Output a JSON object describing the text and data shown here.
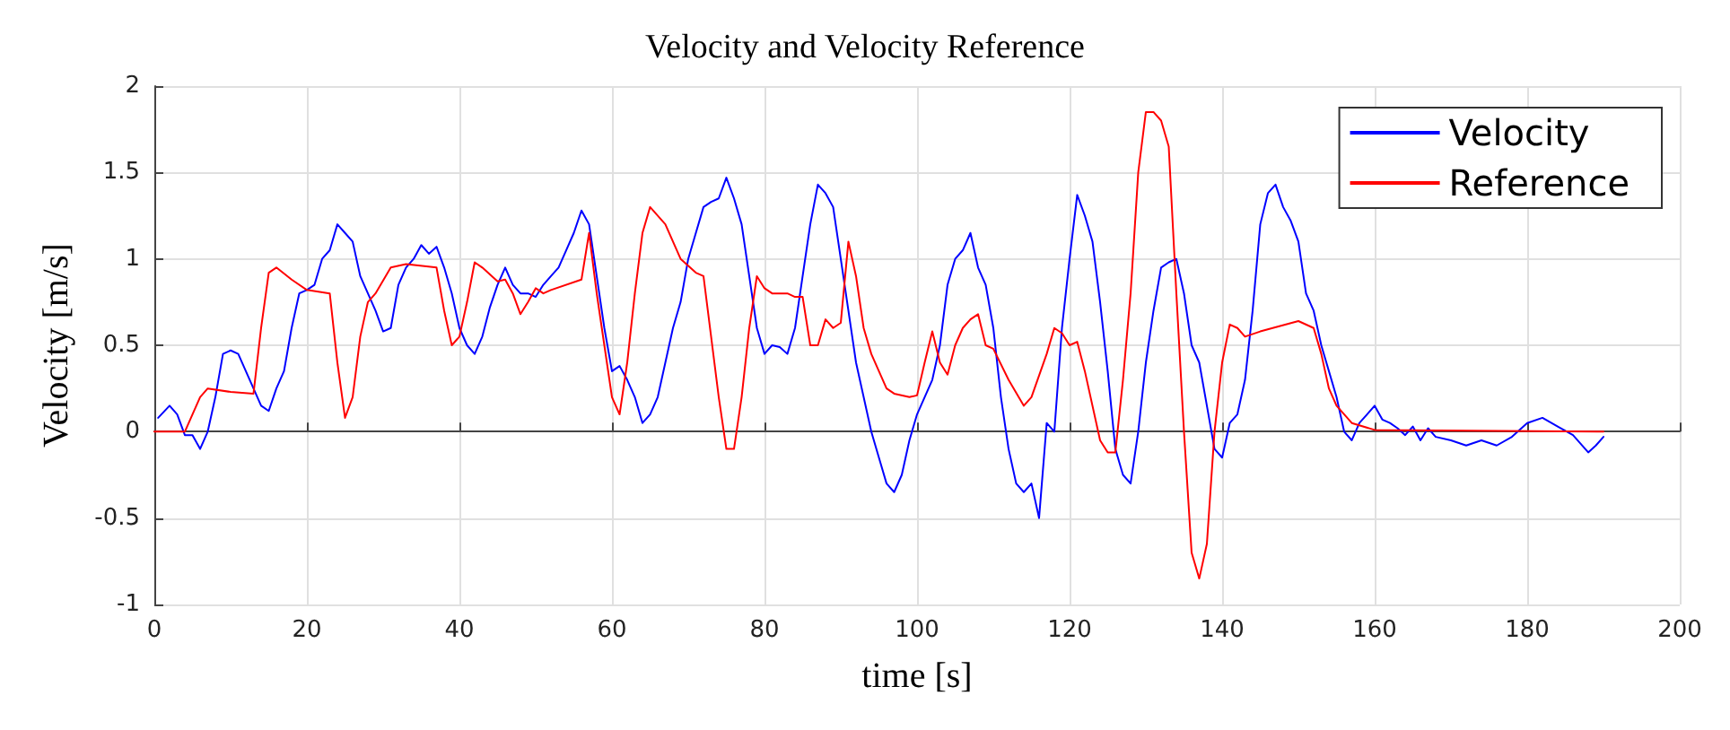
{
  "chart_data": {
    "type": "line",
    "title": "Velocity and Velocity Reference",
    "xlabel": "time [s]",
    "ylabel": "Velocity [m/s]",
    "xlim": [
      0,
      200
    ],
    "xticks": [
      0,
      20,
      40,
      60,
      80,
      100,
      120,
      140,
      160,
      180,
      200
    ],
    "ylim": [
      -1,
      2
    ],
    "yticks": [
      -1,
      -0.5,
      0,
      0.5,
      1,
      1.5,
      2
    ],
    "grid": true,
    "legend": "top right",
    "series": [
      {
        "name": "Velocity",
        "color": "#0000ff",
        "x": [
          0.5,
          2,
          3,
          4,
          5,
          6,
          7,
          8,
          9,
          10,
          11,
          12,
          13,
          14,
          15,
          16,
          17,
          18,
          19,
          20,
          21,
          22,
          23,
          24,
          25,
          26,
          27,
          28,
          29,
          30,
          31,
          32,
          33,
          34,
          35,
          36,
          37,
          38,
          39,
          40,
          41,
          42,
          43,
          44,
          45,
          46,
          47,
          48,
          49,
          50,
          51,
          52,
          53,
          54,
          55,
          56,
          57,
          58,
          59,
          60,
          61,
          62,
          63,
          64,
          65,
          66,
          67,
          68,
          69,
          70,
          71,
          72,
          73,
          74,
          75,
          76,
          77,
          78,
          79,
          80,
          81,
          82,
          83,
          84,
          85,
          86,
          87,
          88,
          89,
          90,
          91,
          92,
          93,
          94,
          95,
          96,
          97,
          98,
          99,
          100,
          101,
          102,
          103,
          104,
          105,
          106,
          107,
          108,
          109,
          110,
          111,
          112,
          113,
          114,
          115,
          116,
          117,
          118,
          119,
          120,
          121,
          122,
          123,
          124,
          125,
          126,
          127,
          128,
          129,
          130,
          131,
          132,
          133,
          134,
          135,
          136,
          137,
          138,
          139,
          140,
          141,
          142,
          143,
          144,
          145,
          146,
          147,
          148,
          149,
          150,
          151,
          152,
          153,
          154,
          155,
          156,
          157,
          158,
          159,
          160,
          161,
          162,
          163,
          164,
          165,
          166,
          167,
          168,
          170,
          172,
          174,
          176,
          178,
          180,
          182,
          184,
          186,
          188,
          189,
          190
        ],
        "values": [
          0.08,
          0.15,
          0.1,
          -0.02,
          -0.02,
          -0.1,
          0.0,
          0.2,
          0.45,
          0.47,
          0.45,
          0.35,
          0.25,
          0.15,
          0.12,
          0.25,
          0.35,
          0.6,
          0.8,
          0.82,
          0.85,
          1.0,
          1.05,
          1.2,
          1.15,
          1.1,
          0.9,
          0.8,
          0.7,
          0.58,
          0.6,
          0.85,
          0.95,
          1.0,
          1.08,
          1.03,
          1.07,
          0.95,
          0.8,
          0.6,
          0.5,
          0.45,
          0.55,
          0.72,
          0.85,
          0.95,
          0.85,
          0.8,
          0.8,
          0.78,
          0.85,
          0.9,
          0.95,
          1.05,
          1.15,
          1.28,
          1.2,
          0.9,
          0.6,
          0.35,
          0.38,
          0.3,
          0.2,
          0.05,
          0.1,
          0.2,
          0.4,
          0.6,
          0.75,
          1.0,
          1.15,
          1.3,
          1.33,
          1.35,
          1.47,
          1.35,
          1.2,
          0.9,
          0.6,
          0.45,
          0.5,
          0.49,
          0.45,
          0.6,
          0.9,
          1.2,
          1.43,
          1.38,
          1.3,
          1.0,
          0.7,
          0.4,
          0.2,
          0.0,
          -0.15,
          -0.3,
          -0.35,
          -0.25,
          -0.05,
          0.1,
          0.2,
          0.3,
          0.5,
          0.85,
          1.0,
          1.05,
          1.15,
          0.95,
          0.85,
          0.6,
          0.2,
          -0.1,
          -0.3,
          -0.35,
          -0.3,
          -0.5,
          0.05,
          0.0,
          0.6,
          1.0,
          1.37,
          1.25,
          1.1,
          0.75,
          0.35,
          -0.1,
          -0.25,
          -0.3,
          0.0,
          0.4,
          0.7,
          0.95,
          0.98,
          1.0,
          0.8,
          0.5,
          0.4,
          0.15,
          -0.1,
          -0.15,
          0.05,
          0.1,
          0.3,
          0.7,
          1.2,
          1.38,
          1.43,
          1.3,
          1.22,
          1.1,
          0.8,
          0.7,
          0.5,
          0.35,
          0.2,
          0.0,
          -0.05,
          0.05,
          0.1,
          0.15,
          0.07,
          0.05,
          0.02,
          -0.02,
          0.03,
          -0.05,
          0.02,
          -0.03,
          -0.05,
          -0.08,
          -0.05,
          -0.08,
          -0.03,
          0.05,
          0.08,
          0.03,
          -0.02,
          -0.12,
          -0.08,
          -0.03
        ]
      },
      {
        "name": "Reference",
        "color": "#ff0000",
        "x": [
          0,
          4,
          5,
          6,
          7,
          10,
          13,
          14,
          15,
          16,
          18,
          20,
          23,
          24,
          25,
          26,
          27,
          28,
          29,
          31,
          33,
          37,
          38,
          39,
          40,
          41,
          42,
          43,
          45,
          46,
          47,
          48,
          49,
          50,
          51,
          52,
          56,
          57,
          58,
          59,
          60,
          61,
          62,
          63,
          64,
          65,
          67,
          69,
          71,
          72,
          73,
          74,
          75,
          76,
          77,
          78,
          79,
          80,
          81,
          83,
          84,
          85,
          86,
          87,
          88,
          89,
          90,
          91,
          92,
          93,
          94,
          95,
          96,
          97,
          99,
          100,
          101,
          102,
          103,
          104,
          105,
          106,
          107,
          108,
          109,
          110,
          112,
          114,
          115,
          117,
          118,
          119,
          120,
          121,
          122,
          124,
          125,
          126,
          127,
          128,
          129,
          130,
          131,
          132,
          133,
          134,
          135,
          136,
          137,
          138,
          139,
          140,
          141,
          142,
          143,
          145,
          150,
          152,
          153,
          154,
          155,
          157,
          160,
          190
        ],
        "values": [
          0,
          0,
          0.1,
          0.2,
          0.25,
          0.23,
          0.22,
          0.6,
          0.92,
          0.95,
          0.88,
          0.82,
          0.8,
          0.4,
          0.08,
          0.2,
          0.55,
          0.75,
          0.8,
          0.95,
          0.97,
          0.95,
          0.7,
          0.5,
          0.55,
          0.75,
          0.98,
          0.95,
          0.87,
          0.88,
          0.8,
          0.68,
          0.75,
          0.83,
          0.8,
          0.82,
          0.88,
          1.15,
          0.8,
          0.5,
          0.2,
          0.1,
          0.4,
          0.8,
          1.15,
          1.3,
          1.2,
          1.0,
          0.92,
          0.9,
          0.55,
          0.2,
          -0.1,
          -0.1,
          0.2,
          0.6,
          0.9,
          0.83,
          0.8,
          0.8,
          0.78,
          0.78,
          0.5,
          0.5,
          0.65,
          0.6,
          0.63,
          1.1,
          0.9,
          0.6,
          0.45,
          0.35,
          0.25,
          0.22,
          0.2,
          0.21,
          0.4,
          0.58,
          0.4,
          0.33,
          0.5,
          0.6,
          0.65,
          0.68,
          0.5,
          0.48,
          0.3,
          0.15,
          0.2,
          0.45,
          0.6,
          0.57,
          0.5,
          0.52,
          0.35,
          -0.05,
          -0.12,
          -0.12,
          0.3,
          0.8,
          1.5,
          1.85,
          1.85,
          1.8,
          1.65,
          0.8,
          0.0,
          -0.7,
          -0.85,
          -0.65,
          0.0,
          0.4,
          0.62,
          0.6,
          0.55,
          0.58,
          0.64,
          0.6,
          0.45,
          0.25,
          0.15,
          0.05,
          0.01,
          0.0
        ]
      }
    ]
  }
}
